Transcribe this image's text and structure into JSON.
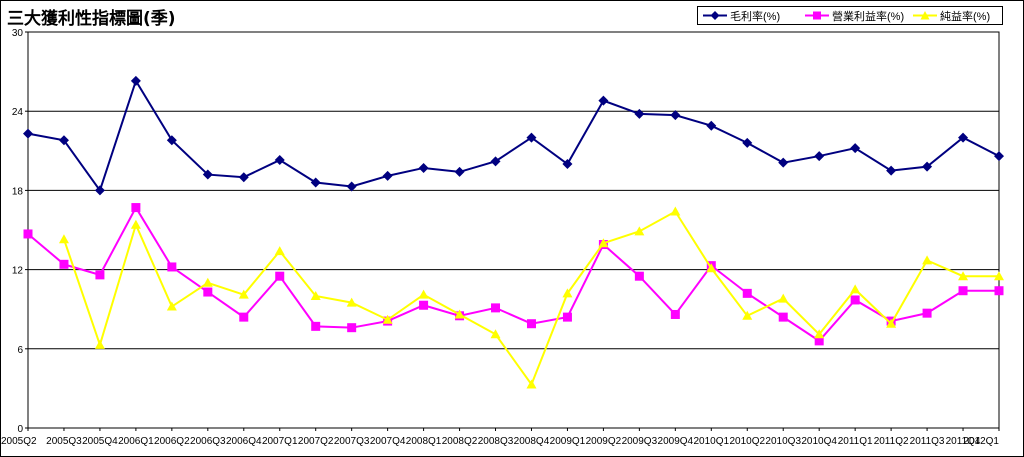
{
  "chart_data": {
    "type": "line",
    "title": "三大獲利性指標圖(季)",
    "xlabel": "",
    "ylabel": "",
    "categories": [
      "2005Q2",
      "2005Q3",
      "2005Q4",
      "2006Q1",
      "2006Q2",
      "2006Q3",
      "2006Q4",
      "2007Q1",
      "2007Q2",
      "2007Q3",
      "2007Q4",
      "2008Q1",
      "2008Q2",
      "2008Q3",
      "2008Q4",
      "2009Q1",
      "2009Q2",
      "2009Q3",
      "2009Q4",
      "2010Q1",
      "2010Q2",
      "2010Q3",
      "2010Q4",
      "2011Q1",
      "2011Q2",
      "2011Q3",
      "2011Q4",
      "2012Q1"
    ],
    "ylim": [
      0,
      30
    ],
    "yticks": [
      0,
      6,
      12,
      18,
      24,
      30
    ],
    "grid": "horizontal",
    "legend_position": "top-right",
    "series": [
      {
        "name": "毛利率(%)",
        "color": "#000080",
        "marker": "diamond",
        "values": [
          22.3,
          21.8,
          18.0,
          26.3,
          21.8,
          19.2,
          19.0,
          20.3,
          18.6,
          18.3,
          19.1,
          19.7,
          19.4,
          20.2,
          22.0,
          20.0,
          24.8,
          23.8,
          23.7,
          22.9,
          21.6,
          20.1,
          20.6,
          21.2,
          19.5,
          19.8,
          22.0,
          20.6
        ]
      },
      {
        "name": "營業利益率(%)",
        "color": "#ff00ff",
        "marker": "square",
        "values": [
          14.7,
          12.4,
          11.6,
          16.7,
          12.2,
          10.3,
          8.4,
          11.5,
          7.7,
          7.6,
          8.1,
          9.3,
          8.5,
          9.1,
          7.9,
          8.4,
          13.9,
          11.5,
          8.6,
          12.3,
          10.2,
          8.4,
          6.6,
          9.7,
          8.1,
          8.7,
          10.4,
          10.4
        ]
      },
      {
        "name": "純益率(%)",
        "color": "#ffff00",
        "marker": "triangle",
        "values": [
          null,
          14.3,
          6.3,
          15.4,
          9.2,
          11.0,
          10.1,
          13.4,
          10.0,
          9.5,
          8.2,
          10.1,
          8.6,
          7.1,
          3.3,
          10.2,
          14.0,
          14.9,
          16.4,
          12.1,
          8.5,
          9.8,
          7.1,
          10.5,
          7.9,
          12.7,
          11.5,
          11.5
        ]
      }
    ]
  }
}
